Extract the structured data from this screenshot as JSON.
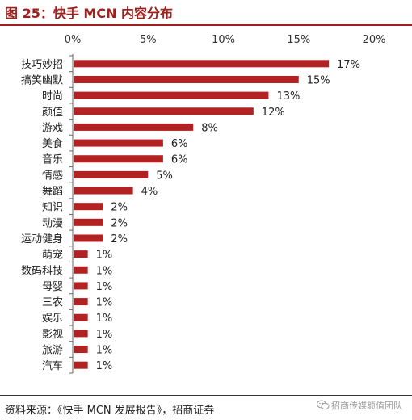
{
  "header": {
    "title": "图 25：快手 MCN 内容分布"
  },
  "chart_data": {
    "type": "bar",
    "orientation": "horizontal",
    "title": "",
    "xlabel": "",
    "ylabel": "",
    "xlim": [
      0,
      20
    ],
    "x_ticks": [
      "0%",
      "5%",
      "10%",
      "15%",
      "20%"
    ],
    "x_axis_position": "top",
    "grid": false,
    "legend": "none",
    "bar_color": "#b22222",
    "categories": [
      "技巧妙招",
      "搞笑幽默",
      "时尚",
      "颜值",
      "游戏",
      "美食",
      "音乐",
      "情感",
      "舞蹈",
      "知识",
      "动漫",
      "运动健身",
      "萌宠",
      "数码科技",
      "母婴",
      "三农",
      "娱乐",
      "影视",
      "旅游",
      "汽车"
    ],
    "values": [
      17,
      15,
      13,
      12,
      8,
      6,
      6,
      5,
      4,
      2,
      2,
      2,
      1,
      1,
      1,
      1,
      1,
      1,
      1,
      1
    ],
    "data_labels": [
      "17%",
      "15%",
      "13%",
      "12%",
      "8%",
      "6%",
      "6%",
      "5%",
      "4%",
      "2%",
      "2%",
      "2%",
      "1%",
      "1%",
      "1%",
      "1%",
      "1%",
      "1%",
      "1%",
      "1%"
    ]
  },
  "footer": {
    "source": "资料来源：《快手 MCN 发展报告》，招商证券",
    "watermark": "招商传媒颜值团队"
  }
}
